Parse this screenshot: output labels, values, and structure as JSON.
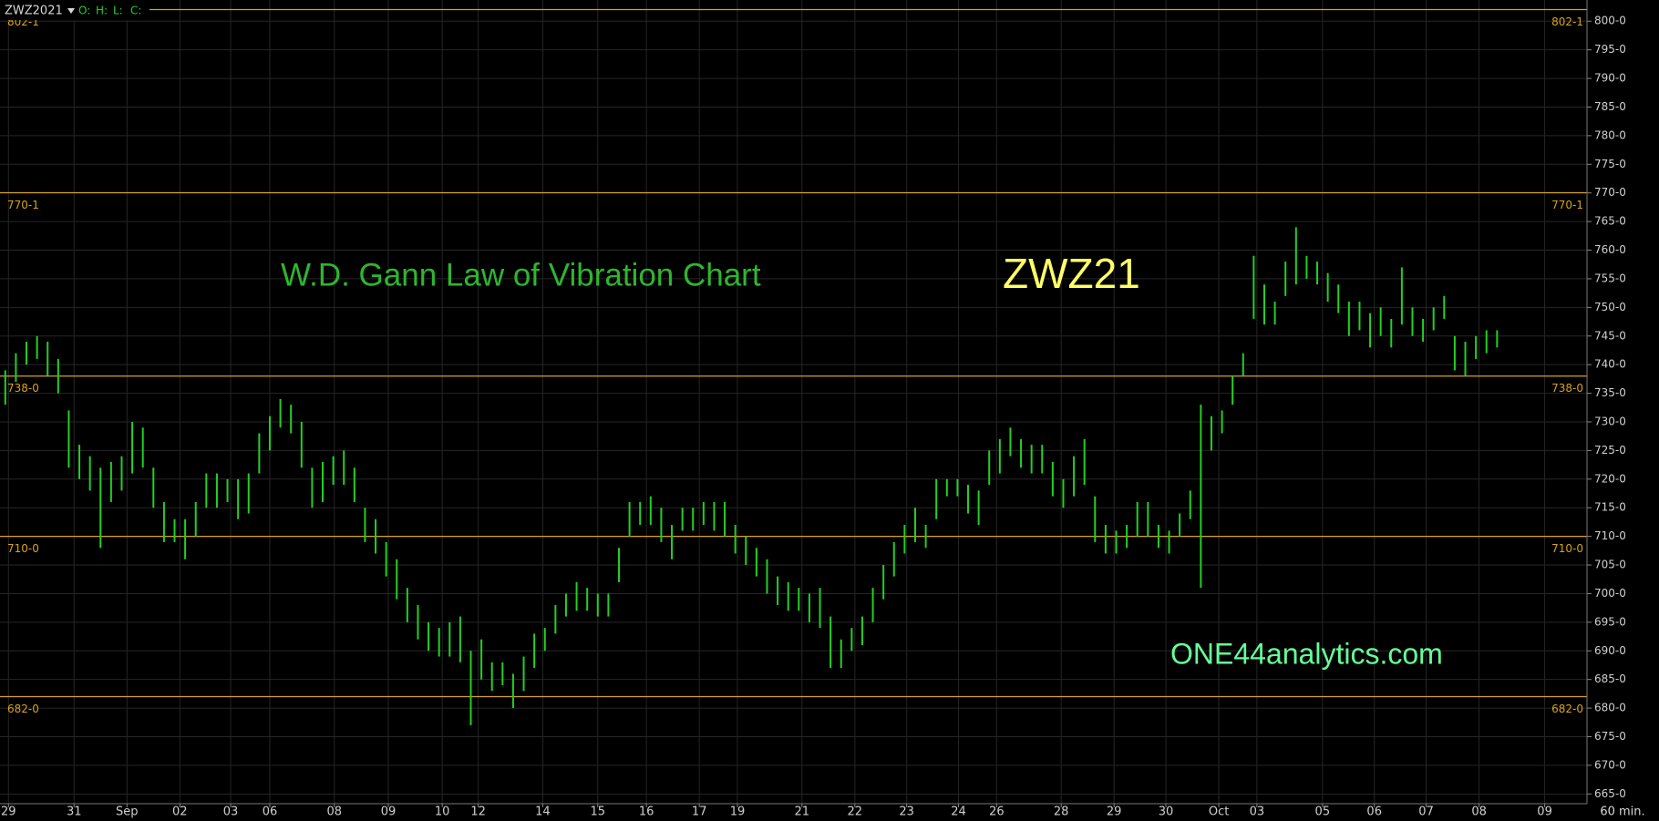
{
  "chart_data": {
    "type": "ohlc",
    "symbol": "ZWZ2021",
    "header_fields": [
      "O:",
      "H:",
      "L:",
      "C:"
    ],
    "interval": "60 min.",
    "annotations": [
      {
        "text": "W.D. Gann Law of Vibration Chart",
        "color": "#2fb52f"
      },
      {
        "text": "ZWZ21",
        "color": "#ffff66"
      },
      {
        "text": "ONE44analytics.com",
        "color": "#66ff99"
      }
    ],
    "color": "#22d022",
    "grid": true,
    "level_color": "#d9a21a",
    "levels": [
      {
        "value": 802.03125,
        "label": "802-1"
      },
      {
        "value": 770.03125,
        "label": "770-1"
      },
      {
        "value": 738,
        "label": "738-0"
      },
      {
        "value": 710,
        "label": "710-0"
      },
      {
        "value": 682,
        "label": "682-0"
      }
    ],
    "x": [
      0,
      1,
      2,
      3,
      4,
      5,
      6,
      7,
      8,
      9,
      10,
      11,
      12,
      13,
      14,
      15,
      16,
      17,
      18,
      19,
      20,
      21,
      22,
      23,
      24,
      25,
      26,
      27,
      28,
      29,
      30,
      31,
      32,
      33,
      34,
      35,
      36,
      37,
      38,
      39,
      40,
      41,
      42,
      43,
      44,
      45,
      46,
      47,
      48,
      49,
      50,
      51,
      52,
      53,
      54,
      55,
      56,
      57,
      58,
      59,
      60,
      61,
      62,
      63,
      64,
      65,
      66,
      67,
      68,
      69,
      70,
      71,
      72,
      73,
      74,
      75,
      76,
      77,
      78,
      79,
      80,
      81,
      82,
      83,
      84,
      85,
      86,
      87,
      88,
      89,
      90,
      91,
      92,
      93,
      94,
      95,
      96,
      97,
      98,
      99,
      100,
      101,
      102,
      103,
      104,
      105,
      106,
      107,
      108,
      109,
      110,
      111,
      112,
      113,
      114,
      115,
      116,
      117,
      118,
      119,
      120,
      121,
      122,
      123,
      124,
      125,
      126,
      127,
      128,
      129,
      130,
      131,
      132,
      133,
      134,
      135,
      136,
      137,
      138,
      139,
      140,
      141
    ],
    "high": [
      739,
      742,
      744,
      745,
      744,
      741,
      732,
      726,
      724,
      722,
      723,
      724,
      730,
      729,
      722,
      716,
      713,
      713,
      716,
      721,
      721,
      720,
      720,
      721,
      728,
      731,
      734,
      733,
      730,
      722,
      723,
      724,
      725,
      722,
      715,
      713,
      709,
      706,
      701,
      698,
      695,
      694,
      695,
      696,
      690,
      692,
      688,
      688,
      686,
      689,
      693,
      694,
      698,
      700,
      702,
      701,
      700,
      700,
      708,
      716,
      716,
      717,
      715,
      712,
      715,
      715,
      716,
      716,
      716,
      712,
      710,
      708,
      706,
      703,
      702,
      701,
      700,
      701,
      696,
      692,
      694,
      696,
      701,
      705,
      709,
      712,
      715,
      712,
      720,
      720,
      720,
      719,
      718,
      725,
      727,
      729,
      727,
      726,
      726,
      723,
      720,
      724,
      727,
      717,
      712,
      711,
      712,
      716,
      716,
      712,
      711,
      714,
      718,
      733,
      731,
      732,
      738,
      742,
      759,
      754,
      751,
      758,
      764,
      759,
      758,
      756,
      754,
      751,
      751,
      749,
      750,
      748,
      757,
      750,
      748,
      750,
      752,
      745,
      744,
      745,
      746,
      746
    ],
    "low": [
      733,
      737,
      740,
      741,
      738,
      735,
      722,
      720,
      718,
      708,
      716,
      718,
      721,
      722,
      715,
      709,
      709,
      706,
      710,
      715,
      715,
      716,
      713,
      714,
      721,
      725,
      729,
      728,
      722,
      715,
      716,
      719,
      719,
      716,
      709,
      707,
      703,
      699,
      695,
      692,
      690,
      689,
      689,
      688,
      677,
      685,
      683,
      684,
      680,
      683,
      687,
      690,
      693,
      696,
      697,
      697,
      696,
      696,
      702,
      710,
      712,
      712,
      709,
      706,
      711,
      711,
      712,
      711,
      710,
      707,
      705,
      703,
      700,
      698,
      697,
      697,
      695,
      694,
      687,
      687,
      690,
      691,
      695,
      699,
      703,
      707,
      709,
      708,
      713,
      717,
      717,
      714,
      712,
      719,
      721,
      724,
      722,
      721,
      721,
      717,
      715,
      717,
      719,
      709,
      707,
      707,
      708,
      710,
      710,
      708,
      707,
      710,
      713,
      701,
      725,
      728,
      733,
      738,
      748,
      747,
      747,
      752,
      754,
      755,
      754,
      751,
      749,
      745,
      746,
      743,
      745,
      743,
      747,
      745,
      744,
      746,
      748,
      739,
      738,
      741,
      742,
      743
    ],
    "xlim": [
      -0.5,
      149.5
    ],
    "ylim": [
      663.3,
      803.7
    ],
    "xticks": [
      {
        "value": 0.3,
        "label": "29"
      },
      {
        "value": 6.5,
        "label": "31"
      },
      {
        "value": 11.5,
        "label": "Sep"
      },
      {
        "value": 16.5,
        "label": "02"
      },
      {
        "value": 21.3,
        "label": "03"
      },
      {
        "value": 25,
        "label": "06"
      },
      {
        "value": 31.1,
        "label": "08"
      },
      {
        "value": 36.2,
        "label": "09"
      },
      {
        "value": 41.3,
        "label": "10"
      },
      {
        "value": 44.7,
        "label": "12"
      },
      {
        "value": 50.8,
        "label": "14"
      },
      {
        "value": 56,
        "label": "15"
      },
      {
        "value": 60.6,
        "label": "16"
      },
      {
        "value": 65.6,
        "label": "17"
      },
      {
        "value": 69.2,
        "label": "19"
      },
      {
        "value": 75.3,
        "label": "21"
      },
      {
        "value": 80.3,
        "label": "22"
      },
      {
        "value": 85.2,
        "label": "23"
      },
      {
        "value": 90.1,
        "label": "24"
      },
      {
        "value": 93.7,
        "label": "26"
      },
      {
        "value": 99.8,
        "label": "28"
      },
      {
        "value": 104.8,
        "label": "29"
      },
      {
        "value": 109.7,
        "label": "30"
      },
      {
        "value": 114.7,
        "label": "Oct"
      },
      {
        "value": 118.3,
        "label": "03"
      },
      {
        "value": 124.5,
        "label": "05"
      },
      {
        "value": 129.4,
        "label": "06"
      },
      {
        "value": 134.3,
        "label": "07"
      },
      {
        "value": 139.3,
        "label": "08"
      },
      {
        "value": 145.5,
        "label": "09"
      }
    ],
    "yticks": [
      {
        "value": 665,
        "label": "665-0"
      },
      {
        "value": 670,
        "label": "670-0"
      },
      {
        "value": 675,
        "label": "675-0"
      },
      {
        "value": 680,
        "label": "680-0"
      },
      {
        "value": 685,
        "label": "685-0"
      },
      {
        "value": 690,
        "label": "690-0"
      },
      {
        "value": 695,
        "label": "695-0"
      },
      {
        "value": 700,
        "label": "700-0"
      },
      {
        "value": 705,
        "label": "705-0"
      },
      {
        "value": 710,
        "label": "710-0"
      },
      {
        "value": 715,
        "label": "715-0"
      },
      {
        "value": 720,
        "label": "720-0"
      },
      {
        "value": 725,
        "label": "725-0"
      },
      {
        "value": 730,
        "label": "730-0"
      },
      {
        "value": 735,
        "label": "735-0"
      },
      {
        "value": 740,
        "label": "740-0"
      },
      {
        "value": 745,
        "label": "745-0"
      },
      {
        "value": 750,
        "label": "750-0"
      },
      {
        "value": 755,
        "label": "755-0"
      },
      {
        "value": 760,
        "label": "760-0"
      },
      {
        "value": 765,
        "label": "765-0"
      },
      {
        "value": 770,
        "label": "770-0"
      },
      {
        "value": 775,
        "label": "775-0"
      },
      {
        "value": 780,
        "label": "780-0"
      },
      {
        "value": 785,
        "label": "785-0"
      },
      {
        "value": 790,
        "label": "790-0"
      },
      {
        "value": 795,
        "label": "795-0"
      },
      {
        "value": 800,
        "label": "800-0"
      }
    ]
  }
}
